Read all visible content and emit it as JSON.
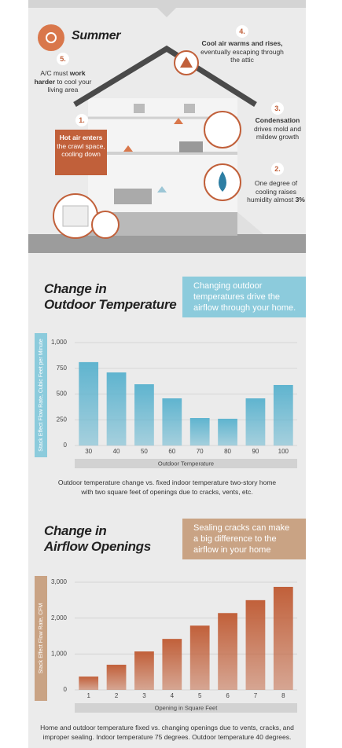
{
  "illustration": {
    "title": "Summer",
    "callouts": [
      {
        "number": "1.",
        "parts": [
          {
            "text": "Hot air enters",
            "bold": true
          },
          {
            "text": " the crawl space, cooling down",
            "bold": false
          }
        ]
      },
      {
        "number": "2.",
        "parts": [
          {
            "text": "One degree of cooling raises humidity almost ",
            "bold": false
          },
          {
            "text": "3%",
            "bold": true
          }
        ]
      },
      {
        "number": "3.",
        "parts": [
          {
            "text": "Condensation",
            "bold": true
          },
          {
            "text": " drives mold and mildew growth",
            "bold": false
          }
        ]
      },
      {
        "number": "4.",
        "parts": [
          {
            "text": "Cool air warms and rises,",
            "bold": true
          },
          {
            "text": " eventually escaping through the attic",
            "bold": false
          }
        ]
      },
      {
        "number": "5.",
        "parts": [
          {
            "text": "A/C must ",
            "bold": false
          },
          {
            "text": "work harder",
            "bold": true
          },
          {
            "text": " to cool your living area",
            "bold": false
          }
        ]
      }
    ]
  },
  "chart_data": [
    {
      "type": "bar",
      "title": "Change in\nOutdoor Temperature",
      "note": "Changing outdoor\ntemperatures drive the\nairflow through your home.",
      "y_label": "Stack Effect Flow Rate, Cubic Feet per Minute",
      "x_label": "Outdoor Temperature",
      "categories": [
        "30",
        "40",
        "50",
        "60",
        "70",
        "80",
        "90",
        "100"
      ],
      "values": [
        810,
        710,
        595,
        458,
        267,
        260,
        458,
        588
      ],
      "color": "#5fb4cf",
      "note_color": "#8ccbdc",
      "ylim": [
        0,
        1000
      ],
      "yticks": [
        0,
        250,
        500,
        750,
        {
          "value": 1000,
          "label": "1,000"
        }
      ],
      "grid": true,
      "caption": "Outdoor temperature change vs. fixed indoor temperature two-story home\nwith two square feet of openings due to cracks, vents, etc."
    },
    {
      "type": "bar",
      "title": "Change in\nAirflow Openings",
      "note": "Sealing cracks can make\na big difference to the\nairflow in your home",
      "y_label": "Stack Effect Flow Rate, CFM",
      "x_label": "Opening in Square Feet",
      "categories": [
        "1",
        "2",
        "3",
        "4",
        "5",
        "6",
        "7",
        "8"
      ],
      "values": [
        370,
        700,
        1070,
        1420,
        1790,
        2140,
        2500,
        2870
      ],
      "color": "#c1603a",
      "note_color": "#c9a384",
      "ylim": [
        0,
        3000
      ],
      "yticks": [
        0,
        {
          "value": 1000,
          "label": "1,000"
        },
        {
          "value": 2000,
          "label": "2,000"
        },
        {
          "value": 3000,
          "label": "3,000"
        }
      ],
      "grid": true,
      "caption": "Home and outdoor temperature fixed vs. changing openings due to vents, cracks, and\nimproper sealing. Indoor temperature 75 degrees. Outdoor temperature 40 degrees."
    }
  ]
}
